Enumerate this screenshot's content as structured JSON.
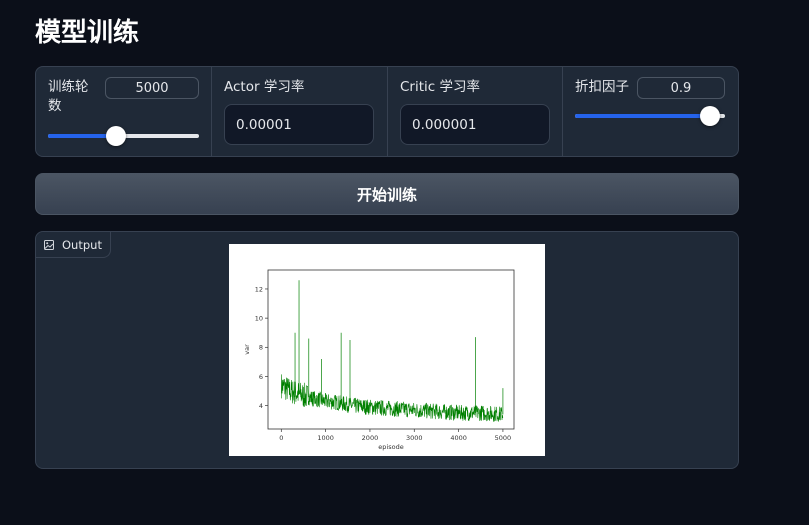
{
  "page": {
    "title": "模型训练"
  },
  "params": {
    "epochs": {
      "label": "训练轮数",
      "value": "5000",
      "slider_fraction": 0.45
    },
    "actor_lr": {
      "label": "Actor 学习率",
      "value": "0.00001"
    },
    "critic_lr": {
      "label": "Critic 学习率",
      "value": "0.000001"
    },
    "discount": {
      "label": "折扣因子",
      "value": "0.9",
      "slider_fraction": 0.9
    }
  },
  "actions": {
    "train_label": "开始训练"
  },
  "output": {
    "label": "Output",
    "icon": "image-icon",
    "chart_data": {
      "type": "line",
      "xlabel": "episode",
      "ylabel": "var",
      "xlim": [
        -300,
        5250
      ],
      "ylim": [
        2.4,
        13.3
      ],
      "xticks": [
        0,
        1000,
        2000,
        3000,
        4000,
        5000
      ],
      "yticks": [
        4,
        6,
        8,
        10,
        12
      ],
      "line_color": "#008000",
      "series": [
        {
          "x": [
            0,
            100,
            200,
            300,
            400,
            500,
            700,
            1000,
            1300,
            1600,
            2000,
            2500,
            3000,
            3500,
            4000,
            4500,
            5000
          ],
          "values": [
            5.4,
            5.2,
            5.0,
            4.9,
            4.8,
            4.7,
            4.5,
            4.3,
            4.2,
            4.0,
            3.9,
            3.8,
            3.7,
            3.6,
            3.5,
            3.5,
            3.4
          ]
        }
      ],
      "spikes": [
        {
          "x": 400,
          "y": 12.6
        },
        {
          "x": 310,
          "y": 9.0
        },
        {
          "x": 620,
          "y": 8.6
        },
        {
          "x": 910,
          "y": 7.2
        },
        {
          "x": 1350,
          "y": 9.0
        },
        {
          "x": 1550,
          "y": 8.5
        },
        {
          "x": 4380,
          "y": 8.7
        },
        {
          "x": 5000,
          "y": 5.2
        }
      ]
    }
  },
  "colors": {
    "accent": "#2563eb",
    "background": "#0b0f19",
    "panel": "#1f2937"
  }
}
